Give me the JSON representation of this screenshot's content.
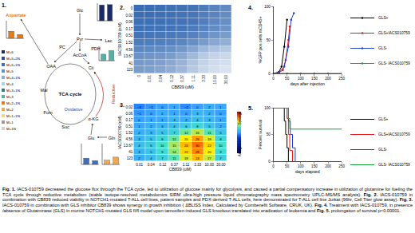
{
  "chart_data": [
    {
      "type": "heatmap",
      "label": "2.",
      "x_label": "CB839 (uM)",
      "y_label": "IACS010759 (nM)",
      "x": [
        "0",
        "0.01",
        "0.04",
        "0.12",
        "0.37",
        "1.11",
        "3.33",
        "10.00",
        "30.00"
      ],
      "y": [
        "0",
        "0.02",
        "0.06",
        "0.17",
        "0.51",
        "1.52",
        "4.56",
        "13.67",
        "41",
        "123"
      ],
      "cells": [
        [
          100,
          100,
          99,
          98,
          97,
          95,
          90,
          85,
          80
        ],
        [
          99,
          99,
          98,
          97,
          96,
          94,
          89,
          84,
          79
        ],
        [
          98,
          98,
          97,
          96,
          95,
          93,
          88,
          82,
          77
        ],
        [
          97,
          96,
          96,
          95,
          93,
          90,
          85,
          79,
          74
        ],
        [
          95,
          94,
          93,
          92,
          90,
          86,
          80,
          73,
          68
        ],
        [
          90,
          89,
          88,
          86,
          83,
          77,
          68,
          60,
          55
        ],
        [
          82,
          81,
          79,
          76,
          71,
          62,
          50,
          42,
          38
        ],
        [
          75,
          73,
          71,
          67,
          60,
          48,
          36,
          30,
          27
        ],
        [
          70,
          68,
          65,
          60,
          52,
          40,
          30,
          25,
          22
        ],
        [
          68,
          66,
          62,
          57,
          49,
          37,
          28,
          23,
          20
        ]
      ],
      "zlim": [
        0,
        100
      ]
    },
    {
      "type": "heatmap",
      "label": "3.",
      "x_label": "CB839 (uM)",
      "y_label": "IACS010759 (nM)",
      "x": [
        "0.01",
        "0.04",
        "0.12",
        "0.37",
        "1.11",
        "3.33",
        "10.00",
        "30.00"
      ],
      "y": [
        "0.02",
        "0.06",
        "0.17",
        "0.51",
        "1.52",
        "4.56",
        "13.67",
        "41",
        "123"
      ],
      "cells": [
        [
          -3,
          -1,
          0,
          1,
          -2,
          0,
          2,
          1
        ],
        [
          -1,
          0,
          2,
          1,
          0,
          3,
          2,
          0
        ],
        [
          0,
          1,
          1,
          3,
          2,
          4,
          3,
          1
        ],
        [
          1,
          2,
          3,
          4,
          6,
          8,
          5,
          2
        ],
        [
          2,
          3,
          5,
          7,
          12,
          16,
          11,
          5
        ],
        [
          3,
          5,
          8,
          12,
          20,
          26,
          18,
          8
        ],
        [
          4,
          6,
          10,
          15,
          24,
          30,
          22,
          10
        ],
        [
          3,
          5,
          9,
          14,
          22,
          28,
          20,
          9
        ],
        [
          2,
          4,
          7,
          11,
          18,
          24,
          17,
          7
        ]
      ],
      "zlim": [
        -40,
        40
      ],
      "data_labels": true,
      "colorbar": {
        "range": [
          -40,
          40
        ],
        "top_label": "Synergy",
        "bottom_label": "Antagonism"
      }
    },
    {
      "type": "line",
      "label": "4.",
      "x_label": "days after injection",
      "y_label": "%GFP pos cells mCD45+",
      "xlim": [
        0,
        250
      ],
      "xticks": [
        0,
        50,
        100,
        150,
        200,
        250
      ],
      "ylim": [
        0,
        100
      ],
      "yticks": [
        0,
        50,
        100
      ],
      "legend": "right",
      "marker": "circle",
      "line_style": "solid",
      "series": [
        {
          "name": "GLS+",
          "color": "#000000",
          "x": [
            0,
            20,
            30,
            40,
            50
          ],
          "values": [
            0,
            2,
            10,
            40,
            80
          ]
        },
        {
          "name": "GLS+IACS010759",
          "color": "#e8161b",
          "x": [
            0,
            20,
            35,
            45,
            55,
            60
          ],
          "values": [
            0,
            1,
            5,
            20,
            50,
            70
          ]
        },
        {
          "name": "GLS-",
          "color": "#1c3fd8",
          "x": [
            0,
            20,
            40,
            55,
            65,
            75
          ],
          "values": [
            0,
            1,
            10,
            40,
            80,
            90
          ]
        },
        {
          "name": "GLS- IACS010759",
          "color": "#18a23a",
          "x": [
            0,
            50,
            100,
            150,
            200,
            250
          ],
          "values": [
            0,
            0,
            0,
            0,
            0,
            0
          ]
        }
      ]
    },
    {
      "type": "line",
      "label": "5.",
      "x_label": "days elapsed",
      "y_label": "Percent survival",
      "xlim": [
        0,
        250
      ],
      "xticks": [
        0,
        50,
        100,
        150,
        200,
        250
      ],
      "ylim": [
        0,
        100
      ],
      "yticks": [
        0,
        50,
        100
      ],
      "legend": "right",
      "line_style": "step",
      "series": [
        {
          "name": "GLS+",
          "color": "#000000",
          "x": [
            0,
            40,
            45,
            50,
            55
          ],
          "values": [
            100,
            75,
            50,
            25,
            0
          ]
        },
        {
          "name": "GLS+IACS010759",
          "color": "#e8161b",
          "x": [
            0,
            50,
            55,
            60,
            70
          ],
          "values": [
            100,
            80,
            50,
            20,
            0
          ]
        },
        {
          "name": "GLS-",
          "color": "#1c3fd8",
          "x": [
            0,
            55,
            62,
            70,
            80
          ],
          "values": [
            100,
            75,
            50,
            25,
            0
          ]
        },
        {
          "name": "GLS- IACS010759",
          "color": "#18a23a",
          "x": [
            0,
            55,
            60,
            250
          ],
          "values": [
            100,
            80,
            60,
            60
          ]
        }
      ]
    }
  ],
  "diagram": {
    "label": "1.",
    "nodes": [
      {
        "label": "Aspartate",
        "color": "#e07a10"
      },
      {
        "label": "Glc",
        "color": "#000000"
      },
      {
        "label": "Pyr",
        "color": "#000000"
      },
      {
        "label": "Lac",
        "color": "#000000"
      },
      {
        "label": "PC",
        "color": "#000000"
      },
      {
        "label": "AcCoA",
        "color": "#000000"
      },
      {
        "label": "PDH",
        "color": "#000000"
      },
      {
        "label": "OAA",
        "color": "#000000"
      },
      {
        "label": "Cit",
        "color": "#000000"
      },
      {
        "label": "TCA cycle",
        "color": "#000000"
      },
      {
        "label": "Mal",
        "color": "#000000"
      },
      {
        "label": "Fum",
        "color": "#000000"
      },
      {
        "label": "Suc",
        "color": "#000000"
      },
      {
        "label": "α-KG",
        "color": "#000000"
      },
      {
        "label": "Glu",
        "color": "#000000"
      },
      {
        "label": "Gln",
        "color": "#000000"
      },
      {
        "label": "Reductive",
        "color": "#c0392b"
      },
      {
        "label": "Oxidative",
        "color": "#2e4a9e"
      }
    ],
    "legend": {
      "labels": [
        "M+6",
        "M+5+2N",
        "M+5+1N",
        "M+5",
        "M+4+1N",
        "M+4",
        "M+3+1N",
        "M+3",
        "M+2+1N",
        "M+2",
        "M+1+1N",
        "M+1",
        "M+1N"
      ],
      "colors": [
        "#1b2a6b",
        "#2e4a9e",
        "#3f6fbf",
        "#5b8fd6",
        "#7fb0e6",
        "#a7cff2",
        "#2c7f7a",
        "#56b0a8",
        "#e37a1c",
        "#f3a64a",
        "#f8cf8a",
        "#9a9a9a",
        "#d0d0d0"
      ]
    },
    "mini_chart_ylim": [
      0,
      100
    ],
    "mini_charts": [
      {
        "values": [
          90,
          92
        ],
        "color": "#1b2a6b"
      },
      {
        "values": [
          45,
          70
        ],
        "color": "#56b0a8"
      },
      {
        "values": [
          40,
          22
        ],
        "color": "#e37a1c"
      },
      {
        "values": [
          30,
          18
        ],
        "color": "#3f6fbf"
      },
      {
        "values": [
          20,
          35
        ],
        "color": "#f3a64a"
      }
    ]
  },
  "caption": [
    {
      "label": "Fig. 1.",
      "text": "IACS-010759 decreased the glucose flux through the TCA cycle, led to utilization of glucose mainly for glycolysis, and caused a partial compensatory increase in utilization of glutamine for fueling the TCA cycle through reductive metabolism (stable isotope-resolved metabolomics SIRM ultra-high pressure liquid chromatography mass spectrometry UPLC-MS/MS analysis)."
    },
    {
      "label": "Fig. 2.",
      "text": "IACS-010759 in combination with CB839 reduced viability in NOTCH1-mutated T-ALL cell lines, patient samples and PDX-derived T-ALL cells, here demonstrated for T-ALL cell line Jurkat (96hr, Cell Titer glow assay)."
    },
    {
      "label": "Fig. 3.",
      "text": "IACS-010759 in combination with GLS inhibitor CB839 shows synergy in growth inhibition ( ΔBLISS Index, Calculated by Combenefit Software, CRUK, UK)."
    },
    {
      "label": "Fig. 4.",
      "text": "Treatment with IACS-010759, in presence /absence of Glutaminase (GLS) in murine NOTCH1-mutated GLS fl/fl model upon tamoxifen-induced GLS knockout translated into eradication of leukemia and"
    },
    {
      "label": "Fig. 5.",
      "text": "prolongation of survival p<0.00001."
    }
  ]
}
